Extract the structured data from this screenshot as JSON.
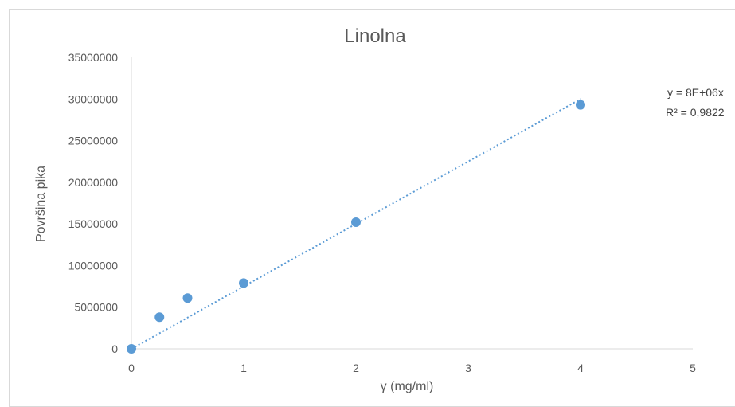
{
  "chart_data": {
    "type": "scatter",
    "title": "Linolna",
    "xlabel": "γ (mg/ml)",
    "ylabel": "Površina pika",
    "xlim": [
      0,
      5
    ],
    "ylim": [
      0,
      35000000
    ],
    "x_ticks": [
      "0",
      "1",
      "2",
      "3",
      "4",
      "5"
    ],
    "y_ticks": [
      "0",
      "5000000",
      "10000000",
      "15000000",
      "20000000",
      "25000000",
      "30000000",
      "35000000"
    ],
    "grid": false,
    "series": [
      {
        "color": "#5b9bd5",
        "points": [
          {
            "x": 0,
            "y": 0
          },
          {
            "x": 0.25,
            "y": 3800000
          },
          {
            "x": 0.5,
            "y": 6100000
          },
          {
            "x": 1,
            "y": 7900000
          },
          {
            "x": 2,
            "y": 15200000
          },
          {
            "x": 4,
            "y": 29300000
          }
        ]
      }
    ],
    "trendline": {
      "type": "linear",
      "style": "dotted",
      "color": "#5b9bd5",
      "slope": 7500000,
      "intercept": 0,
      "x_range": [
        0,
        4
      ],
      "equation_label": "y = 8E+06x",
      "r2_label": "R² = 0,9822"
    }
  }
}
